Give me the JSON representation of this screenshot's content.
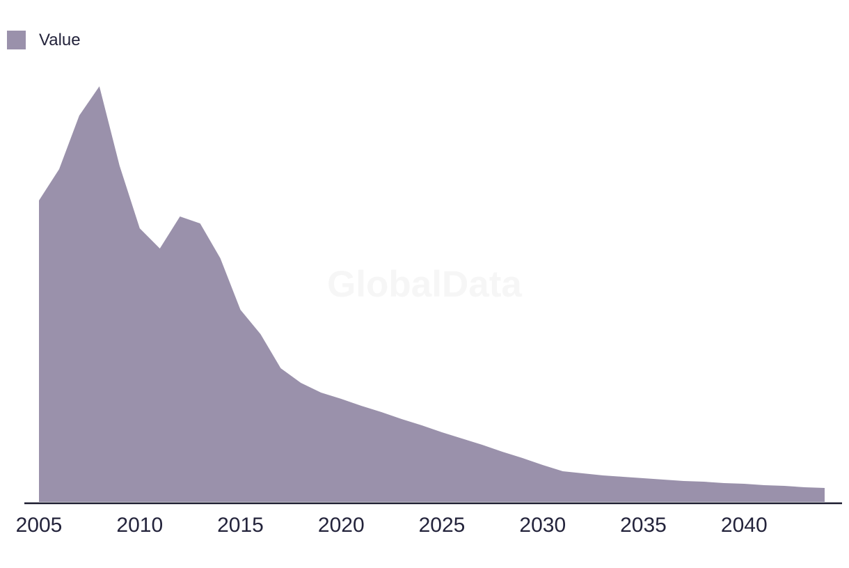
{
  "page": {
    "watermark": "GlobalData"
  },
  "legend": {
    "items": [
      {
        "label": "Value",
        "color": "#9a91ab"
      }
    ]
  },
  "colors": {
    "area_fill": "#9a91ab",
    "axis_line": "#1a1a2e",
    "text": "#23233b",
    "watermark": "#f6f6f6",
    "background": "#ffffff"
  },
  "chart_data": {
    "type": "area",
    "title": "",
    "xlabel": "",
    "ylabel": "",
    "grid": false,
    "y_axis_visible": false,
    "legend_position": "top-left",
    "x_tick_labels": [
      "2005",
      "2010",
      "2015",
      "2020",
      "2025",
      "2030",
      "2035",
      "2040"
    ],
    "x": [
      2005,
      2006,
      2007,
      2008,
      2009,
      2010,
      2011,
      2012,
      2013,
      2014,
      2015,
      2016,
      2017,
      2018,
      2019,
      2020,
      2021,
      2022,
      2023,
      2024,
      2025,
      2026,
      2027,
      2028,
      2029,
      2030,
      2031,
      2032,
      2033,
      2034,
      2035,
      2036,
      2037,
      2038,
      2039,
      2040,
      2041,
      2042,
      2043,
      2044
    ],
    "xlim": [
      2005,
      2044
    ],
    "ylim": [
      0,
      620
    ],
    "series": [
      {
        "name": "Value",
        "color": "#9a91ab",
        "values": [
          433,
          478,
          555,
          597,
          483,
          393,
          364,
          410,
          400,
          350,
          276,
          241,
          192,
          171,
          157,
          148,
          138,
          129,
          119,
          110,
          100,
          91,
          82,
          72,
          63,
          53,
          44,
          41,
          38,
          36,
          34,
          32,
          30,
          29,
          27,
          26,
          24,
          23,
          21,
          20
        ]
      }
    ]
  }
}
